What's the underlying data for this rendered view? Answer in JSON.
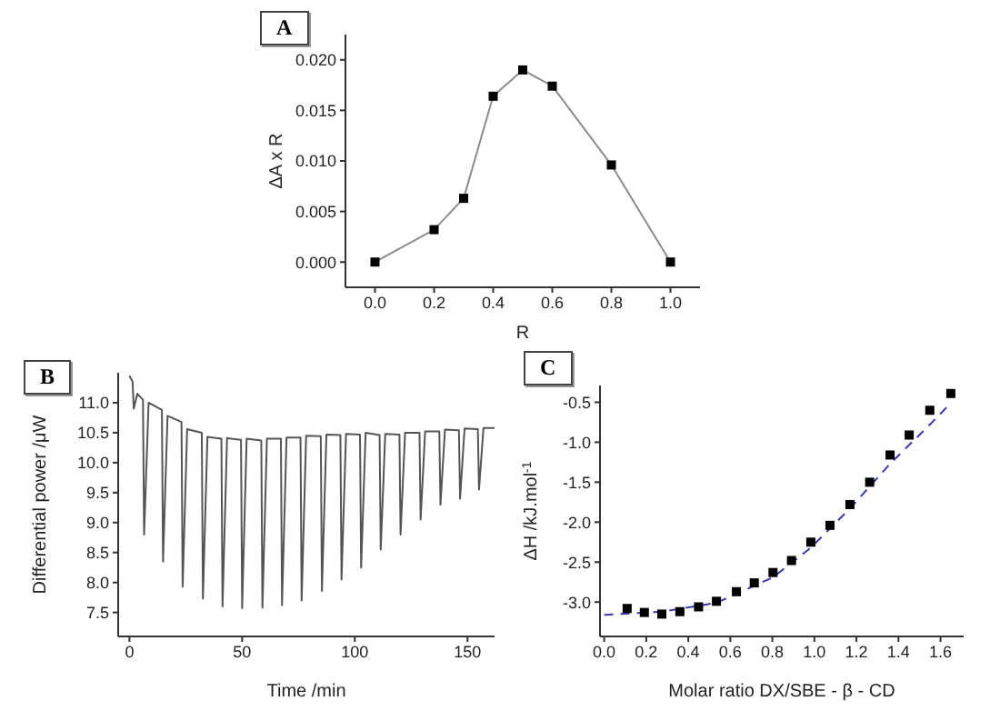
{
  "chart_data": [
    {
      "type": "line",
      "annotations": [
        "A"
      ],
      "xlabel": "R",
      "ylabel": "ΔA x R",
      "marker": "square",
      "x": [
        0,
        0.2,
        0.3,
        0.4,
        0.5,
        0.6,
        0.8,
        1.0
      ],
      "series": [
        {
          "color": "#8c8c8c",
          "values": [
            0,
            0.0032,
            0.0063,
            0.0164,
            0.019,
            0.0174,
            0.0096,
            0
          ]
        }
      ],
      "xlim": [
        -0.1,
        1.1
      ],
      "xticks": [
        {
          "value": 0,
          "label": "0.0"
        },
        {
          "value": 0.2,
          "label": "0.2"
        },
        {
          "value": 0.4,
          "label": "0.4"
        },
        {
          "value": 0.6,
          "label": "0.6"
        },
        {
          "value": 0.8,
          "label": "0.8"
        },
        {
          "value": 1,
          "label": "1.0"
        }
      ],
      "ylim": [
        -0.0025,
        0.0225
      ],
      "yticks": [
        {
          "value": 0,
          "label": "0.000"
        },
        {
          "value": 0.005,
          "label": "0.005"
        },
        {
          "value": 0.01,
          "label": "0.010"
        },
        {
          "value": 0.015,
          "label": "0.015"
        },
        {
          "value": 0.02,
          "label": "0.020"
        }
      ]
    },
    {
      "type": "line",
      "annotations": [
        "B"
      ],
      "xlabel": "Time /min",
      "ylabel": "Differential power /μW",
      "x": [
        0,
        1.4,
        1.9,
        3.5,
        6.0,
        6.5,
        8.5,
        14.4,
        14.9,
        16.9,
        23.1,
        23.6,
        25.6,
        32.1,
        32.6,
        34.6,
        40.8,
        41.3,
        43.3,
        49.5,
        50.0,
        52.0,
        58.5,
        59.0,
        61.0,
        67.2,
        67.7,
        69.7,
        75.9,
        76.4,
        78.4,
        84.9,
        85.4,
        87.4,
        93.6,
        94.1,
        96.1,
        102.3,
        102.8,
        104.8,
        111.0,
        111.5,
        113.5,
        119.8,
        120.3,
        122.3,
        128.7,
        129.2,
        131.2,
        137.5,
        138.0,
        140.0,
        146.2,
        146.7,
        148.7,
        154.6,
        155.1,
        157.1,
        162
      ],
      "series": [
        {
          "color": "#555555",
          "values": [
            11.45,
            11.35,
            10.9,
            11.15,
            11.05,
            8.8,
            11.0,
            10.88,
            8.35,
            10.78,
            10.68,
            7.93,
            10.56,
            10.5,
            7.73,
            10.43,
            10.4,
            7.6,
            10.41,
            10.38,
            7.57,
            10.4,
            10.37,
            7.58,
            10.4,
            10.4,
            7.62,
            10.42,
            10.42,
            7.7,
            10.45,
            10.44,
            7.86,
            10.47,
            10.46,
            8.05,
            10.48,
            10.47,
            8.25,
            10.5,
            10.46,
            8.55,
            10.48,
            10.47,
            8.8,
            10.5,
            10.5,
            9.05,
            10.52,
            10.52,
            9.3,
            10.55,
            10.54,
            9.4,
            10.57,
            10.56,
            9.55,
            10.58,
            10.58
          ]
        }
      ],
      "xlim": [
        -5,
        162
      ],
      "xticks": [
        0,
        50,
        100,
        150
      ],
      "ylim": [
        7.1,
        11.5
      ],
      "yticks": [
        {
          "value": 7.5,
          "label": "7.5"
        },
        {
          "value": 8,
          "label": "8.0"
        },
        {
          "value": 8.5,
          "label": "8.5"
        },
        {
          "value": 9,
          "label": "9.0"
        },
        {
          "value": 9.5,
          "label": "9.5"
        },
        {
          "value": 10,
          "label": "10.0"
        },
        {
          "value": 10.5,
          "label": "10.5"
        },
        {
          "value": 11,
          "label": "11.0"
        }
      ]
    },
    {
      "type": "scatter",
      "annotations": [
        "C"
      ],
      "xlabel": "Molar ratio DX/SBE - β - CD",
      "ylabel": "ΔH /kJ.mol$^{-1}$",
      "x": [
        0.109,
        0.191,
        0.274,
        0.36,
        0.449,
        0.534,
        0.629,
        0.714,
        0.803,
        0.891,
        0.983,
        1.074,
        1.169,
        1.263,
        1.36,
        1.451,
        1.549,
        1.649
      ],
      "series": [
        {
          "color": "#000000",
          "marker": "square",
          "values": [
            -3.08,
            -3.13,
            -3.15,
            -3.12,
            -3.06,
            -2.99,
            -2.87,
            -2.76,
            -2.63,
            -2.48,
            -2.25,
            -2.04,
            -1.78,
            -1.5,
            -1.16,
            -0.91,
            -0.6,
            -0.39
          ]
        },
        {
          "type": "line",
          "line_style": "dashed",
          "marker": "none",
          "color": "#3a3ab0",
          "x": [
            0,
            0.274,
            0.534,
            0.803,
            0.983,
            1.169,
            1.36,
            1.549,
            1.649
          ],
          "values": [
            -3.16,
            -3.12,
            -3.01,
            -2.69,
            -2.32,
            -1.83,
            -1.27,
            -0.78,
            -0.51
          ]
        }
      ],
      "xlim": [
        -0.02,
        1.71
      ],
      "xticks": [
        {
          "value": 0,
          "label": "0.0"
        },
        {
          "value": 0.2,
          "label": "0.2"
        },
        {
          "value": 0.4,
          "label": "0.4"
        },
        {
          "value": 0.6,
          "label": "0.6"
        },
        {
          "value": 0.8,
          "label": "0.8"
        },
        {
          "value": 1,
          "label": "1.0"
        },
        {
          "value": 1.2,
          "label": "1.2"
        },
        {
          "value": 1.4,
          "label": "1.4"
        },
        {
          "value": 1.6,
          "label": "1.6"
        }
      ],
      "ylim": [
        -3.43,
        -0.29
      ],
      "yticks": [
        {
          "value": -3,
          "label": "-3.0"
        },
        {
          "value": -2.5,
          "label": "-2.5"
        },
        {
          "value": -2,
          "label": "-2.0"
        },
        {
          "value": -1.5,
          "label": "-1.5"
        },
        {
          "value": -1,
          "label": "-1.0"
        },
        {
          "value": -0.5,
          "label": "-0.5"
        }
      ]
    }
  ]
}
